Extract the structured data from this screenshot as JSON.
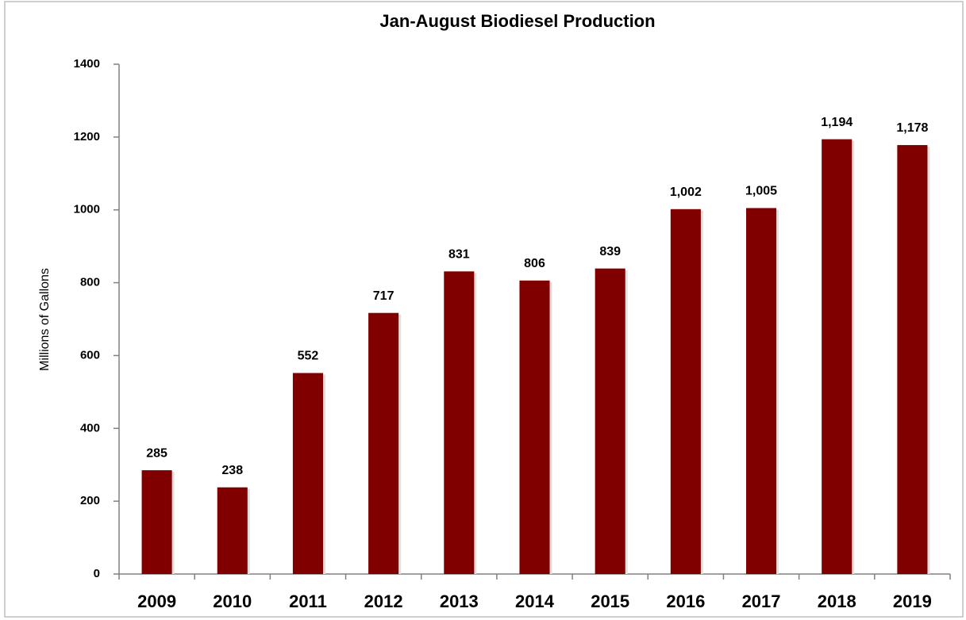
{
  "chart_data": {
    "type": "bar",
    "title": "Jan-August Biodiesel Production",
    "y_label": "Millions of Gallons",
    "categories": [
      "2009",
      "2010",
      "2011",
      "2012",
      "2013",
      "2014",
      "2015",
      "2016",
      "2017",
      "2018",
      "2019"
    ],
    "values": [
      285,
      238,
      552,
      717,
      831,
      806,
      839,
      1002,
      1005,
      1194,
      1178
    ],
    "value_labels": [
      "285",
      "238",
      "552",
      "717",
      "831",
      "806",
      "839",
      "1,002",
      "1,005",
      "1,194",
      "1,178"
    ],
    "color": "#800000",
    "ylim": [
      0,
      1400
    ],
    "yticks": [
      0,
      200,
      400,
      600,
      800,
      1000,
      1200,
      1400
    ],
    "grid": false
  }
}
